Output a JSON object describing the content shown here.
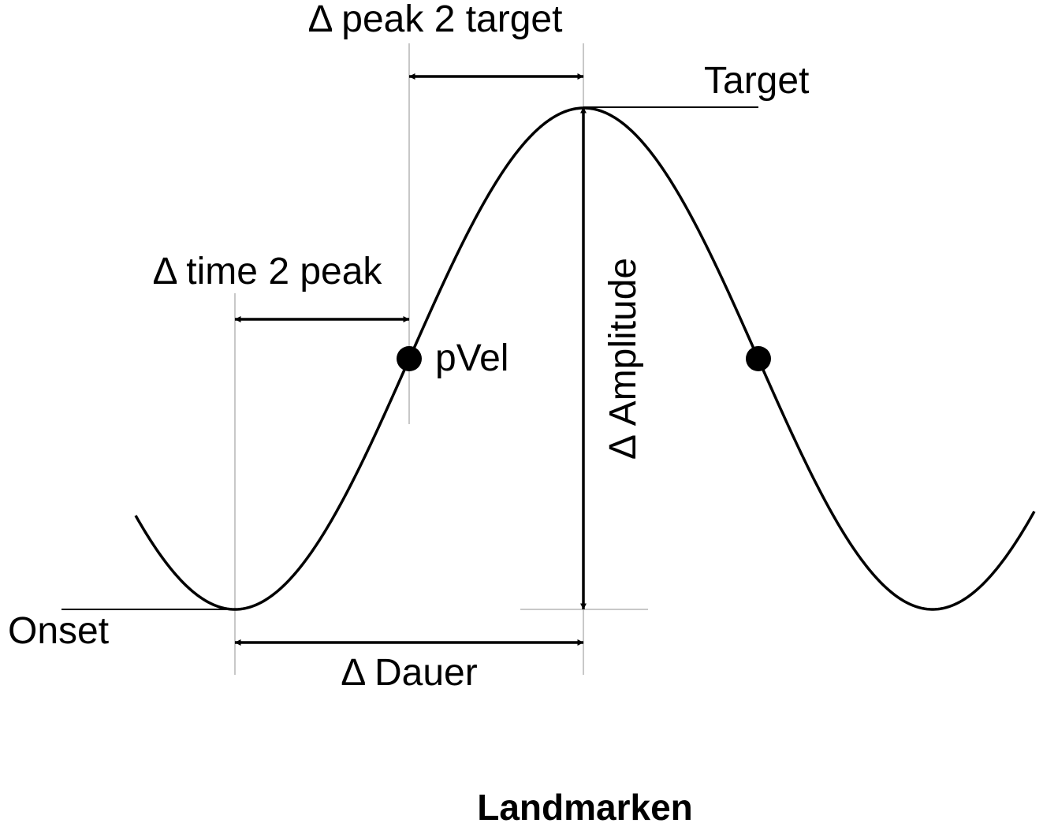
{
  "diagram": {
    "caption": "Landmarken",
    "labels": {
      "peak_to_target": "Δ peak 2 target",
      "target": "Target",
      "time_to_peak": "Δ time 2 peak",
      "pvel": "pVel",
      "amplitude": "Δ Amplitude",
      "onset": "Onset",
      "duration": "Δ Dauer"
    },
    "colors": {
      "stroke": "#000000",
      "guide": "#c8c8c8",
      "background": "#ffffff"
    }
  }
}
